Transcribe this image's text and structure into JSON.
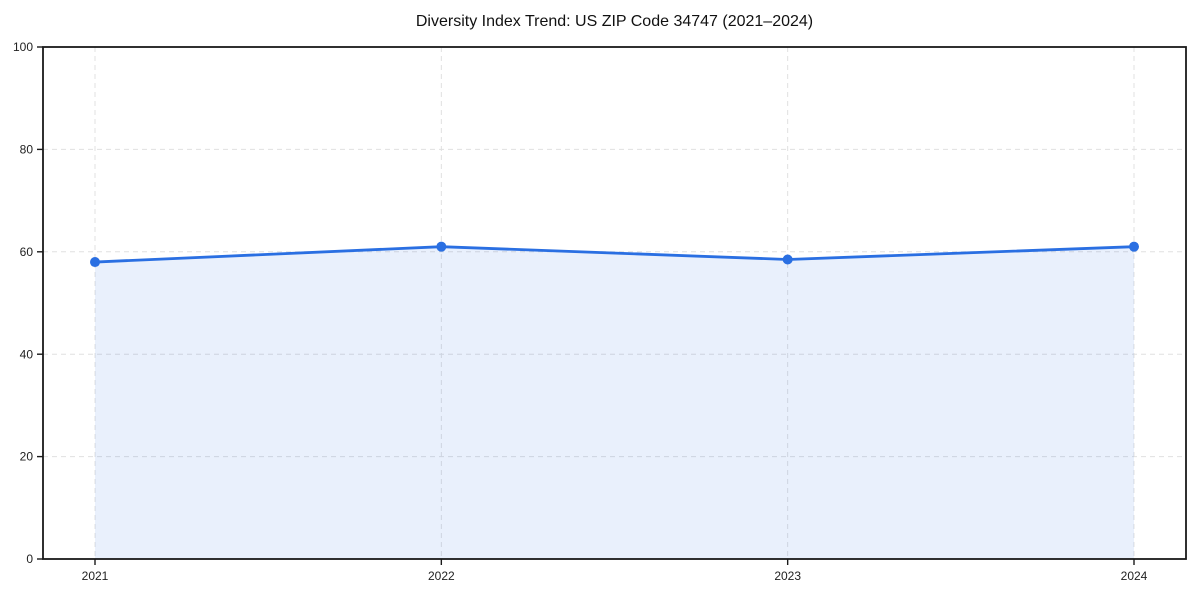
{
  "page": {
    "background": "#ffffff"
  },
  "chart_data": {
    "type": "area",
    "title": "Diversity Index Trend: US ZIP Code 34747 (2021–2024)",
    "categories": [
      "2021",
      "2022",
      "2023",
      "2024"
    ],
    "series": [
      {
        "name": "Diversity Index",
        "values": [
          58,
          61,
          58.5,
          61
        ]
      }
    ],
    "xlabel": "",
    "ylabel": "",
    "ylim": [
      0,
      100
    ],
    "yticks": [
      0,
      20,
      40,
      60,
      80,
      100
    ],
    "grid": true,
    "grid_line_style": "dashed",
    "legend": "none",
    "marker": "circle",
    "colors": {
      "line": "#2a6fe2",
      "marker": "#2a6fe2",
      "fill": "rgba(42, 111, 226, 0.10)",
      "gridline": "#e0e0e0",
      "axis": "#1a1a1a",
      "tick_label": "#222222",
      "title": "#111111"
    }
  }
}
